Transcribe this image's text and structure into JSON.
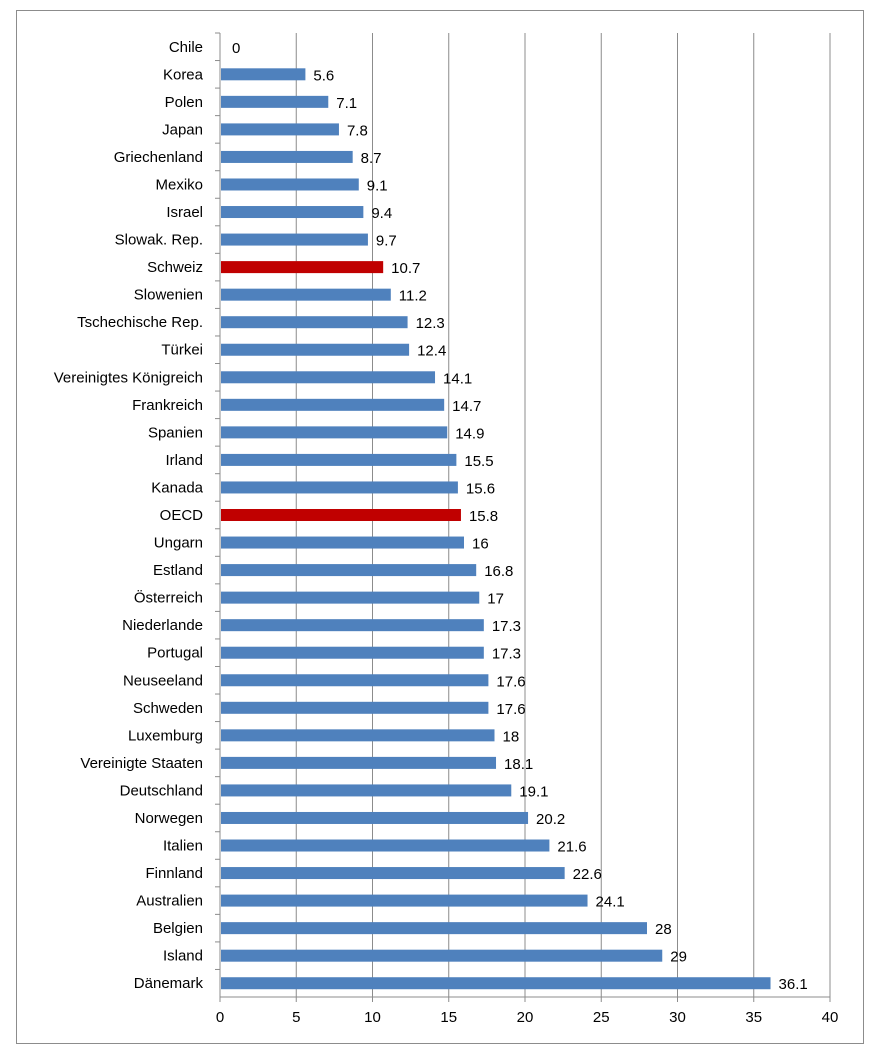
{
  "chart_data": {
    "type": "bar",
    "orientation": "horizontal",
    "title": "",
    "xlabel": "",
    "ylabel": "",
    "xlim": [
      0,
      40
    ],
    "x_ticks": [
      0,
      5,
      10,
      15,
      20,
      25,
      30,
      35,
      40
    ],
    "grid": true,
    "legend": "none",
    "colors": {
      "default": "#4f81bd",
      "highlight": "#c00000",
      "grid": "#8c8c8c"
    },
    "categories": [
      "Chile",
      "Korea",
      "Polen",
      "Japan",
      "Griechenland",
      "Mexiko",
      "Israel",
      "Slowak. Rep.",
      "Schweiz",
      "Slowenien",
      "Tschechische Rep.",
      "Türkei",
      "Vereinigtes Königreich",
      "Frankreich",
      "Spanien",
      "Irland",
      "Kanada",
      "OECD",
      "Ungarn",
      "Estland",
      "Österreich",
      "Niederlande",
      "Portugal",
      "Neuseeland",
      "Schweden",
      "Luxemburg",
      "Vereinigte Staaten",
      "Deutschland",
      "Norwegen",
      "Italien",
      "Finnland",
      "Australien",
      "Belgien",
      "Island",
      "Dänemark"
    ],
    "values": [
      0,
      5.6,
      7.1,
      7.8,
      8.7,
      9.1,
      9.4,
      9.7,
      10.7,
      11.2,
      12.3,
      12.4,
      14.1,
      14.7,
      14.9,
      15.5,
      15.6,
      15.8,
      16,
      16.8,
      17,
      17.3,
      17.3,
      17.6,
      17.6,
      18,
      18.1,
      19.1,
      20.2,
      21.6,
      22.6,
      24.1,
      28,
      29,
      36.1
    ],
    "value_labels": [
      "0",
      "5.6",
      "7.1",
      "7.8",
      "8.7",
      "9.1",
      "9.4",
      "9.7",
      "10.7",
      "11.2",
      "12.3",
      "12.4",
      "14.1",
      "14.7",
      "14.9",
      "15.5",
      "15.6",
      "15.8",
      "16",
      "16.8",
      "17",
      "17.3",
      "17.3",
      "17.6",
      "17.6",
      "18",
      "18.1",
      "19.1",
      "20.2",
      "21.6",
      "22.6",
      "24.1",
      "28",
      "29",
      "36.1"
    ],
    "highlighted": [
      "Schweiz",
      "OECD"
    ]
  }
}
